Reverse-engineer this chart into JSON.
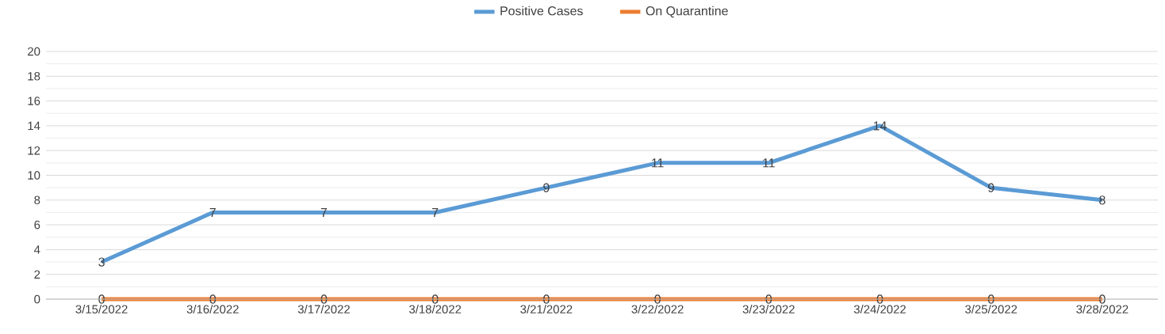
{
  "chart_data": {
    "type": "line",
    "categories": [
      "3/15/2022",
      "3/16/2022",
      "3/17/2022",
      "3/18/2022",
      "3/21/2022",
      "3/22/2022",
      "3/23/2022",
      "3/24/2022",
      "3/25/2022",
      "3/28/2022"
    ],
    "series": [
      {
        "name": "Positive Cases",
        "color": "#5b9bd5",
        "values": [
          3,
          7,
          7,
          7,
          9,
          11,
          11,
          14,
          9,
          8
        ]
      },
      {
        "name": "On Quarantine",
        "color": "#ed7d31",
        "values": [
          0,
          0,
          0,
          0,
          0,
          0,
          0,
          0,
          0,
          0
        ]
      }
    ],
    "ylim": [
      0,
      20
    ],
    "yticks": [
      0,
      2,
      4,
      6,
      8,
      10,
      12,
      14,
      16,
      18,
      20
    ],
    "grid": "y",
    "legend": "top",
    "data_labels": true
  }
}
